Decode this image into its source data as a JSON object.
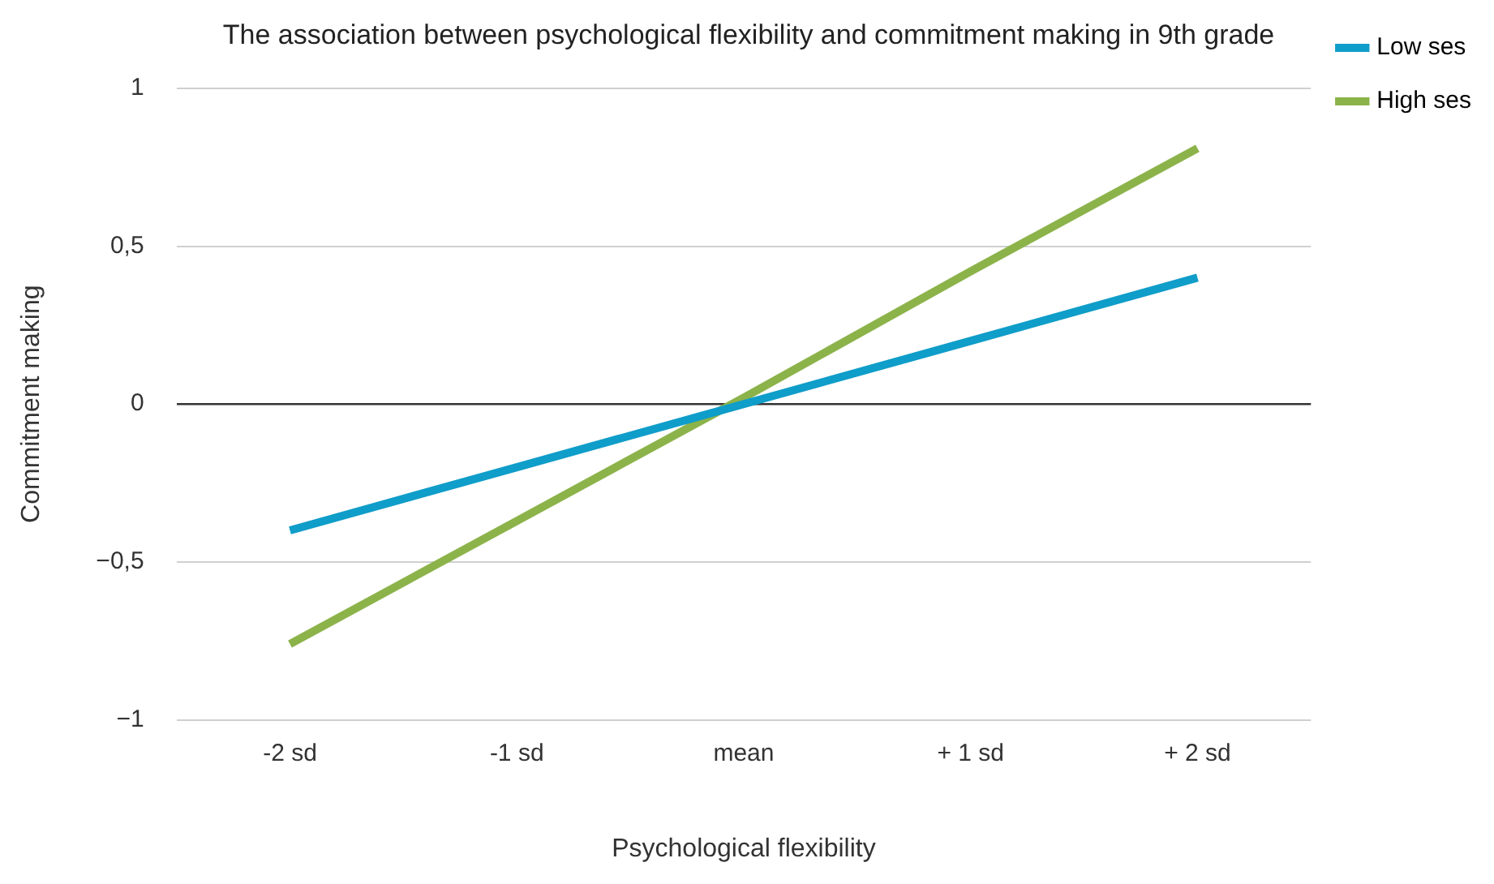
{
  "chart_data": {
    "type": "line",
    "title": "The association between psychological flexibility and commitment making in 9th grade",
    "xlabel": "Psychological flexibility",
    "ylabel": "Commitment making",
    "categories": [
      "-2 sd",
      "-1 sd",
      "mean",
      "+ 1 sd",
      "+ 2 sd"
    ],
    "series": [
      {
        "name": "Low ses",
        "color": "#0f9dc9",
        "values": [
          -0.4,
          -0.2,
          0,
          0.2,
          0.4
        ]
      },
      {
        "name": "High ses",
        "color": "#8cb34a",
        "values": [
          -0.76,
          -0.37,
          0.02,
          0.42,
          0.81
        ]
      }
    ],
    "ylim": [
      -1,
      1
    ],
    "yticks": [
      {
        "value": -1,
        "label": "−1"
      },
      {
        "value": -0.5,
        "label": "−0,5"
      },
      0,
      {
        "value": 0.5,
        "label": "0,5"
      },
      1
    ],
    "grid": "y",
    "legend": "top right",
    "marker": "none",
    "line_style": "solid"
  }
}
